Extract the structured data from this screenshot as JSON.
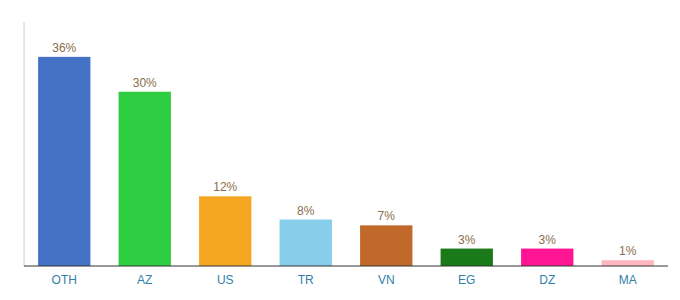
{
  "chart_data": {
    "type": "bar",
    "categories": [
      "OTH",
      "AZ",
      "US",
      "TR",
      "VN",
      "EG",
      "DZ",
      "MA"
    ],
    "values": [
      36,
      30,
      12,
      8,
      7,
      3,
      3,
      1
    ],
    "value_labels": [
      "36%",
      "30%",
      "12%",
      "8%",
      "7%",
      "3%",
      "3%",
      "1%"
    ],
    "colors": [
      "#4472c4",
      "#2ecc40",
      "#f5a623",
      "#87ceeb",
      "#c0692b",
      "#1a7a1a",
      "#ff1493",
      "#ffb6c1"
    ],
    "ylim": [
      0,
      42
    ],
    "data_labels": true,
    "tick_labels": "x",
    "grid": false
  }
}
